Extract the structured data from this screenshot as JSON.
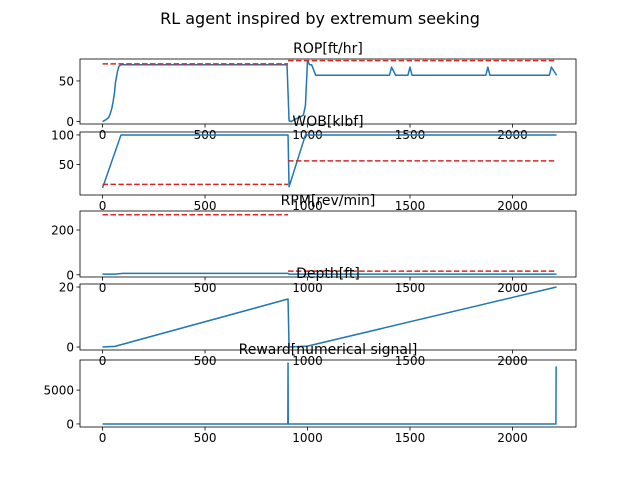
{
  "figure": {
    "suptitle": "RL agent inspired by extremum seeking"
  },
  "colors": {
    "series": "#1f77b4",
    "setpoint": "#d62728",
    "axis": "#000000",
    "background": "#ffffff"
  },
  "chart_data": [
    {
      "type": "line",
      "title": "ROP[ft/hr]",
      "xlim": [
        -110,
        2310
      ],
      "ylim": [
        -3,
        77
      ],
      "xticks": [
        0,
        500,
        1000,
        1500,
        2000
      ],
      "yticks": [
        0,
        50
      ],
      "series": [
        {
          "style": "solid",
          "color": "#1f77b4",
          "x": [
            0,
            15,
            30,
            38,
            45,
            52,
            58,
            63,
            68,
            73,
            80,
            90,
            100,
            900,
            910,
            920,
            940,
            960,
            980,
            990,
            1000,
            1010,
            1020,
            1040,
            1400,
            1410,
            1430,
            1490,
            1500,
            1510,
            1520,
            1870,
            1880,
            1890,
            1900,
            2180,
            2190,
            2215
          ],
          "y": [
            0,
            2,
            5,
            10,
            16,
            25,
            35,
            48,
            55,
            62,
            68,
            70,
            70,
            70,
            1,
            0,
            3,
            5,
            8,
            20,
            75,
            70,
            70,
            57,
            57,
            67,
            57,
            57,
            67,
            57,
            57,
            57,
            67,
            57,
            57,
            57,
            67,
            57
          ]
        },
        {
          "style": "dashed",
          "color": "#d62728",
          "segments": [
            {
              "x": [
                0,
                905
              ],
              "y": [
                71,
                71
              ]
            },
            {
              "x": [
                905,
                2215
              ],
              "y": [
                75,
                75
              ]
            }
          ]
        }
      ]
    },
    {
      "type": "line",
      "title": "WOB[klbf]",
      "xlim": [
        -110,
        2310
      ],
      "ylim": [
        -2,
        105
      ],
      "xticks": [
        0,
        500,
        1000,
        1500,
        2000
      ],
      "yticks": [
        50,
        100
      ],
      "series": [
        {
          "style": "solid",
          "color": "#1f77b4",
          "x": [
            0,
            90,
            905,
            910,
            990,
            2215
          ],
          "y": [
            10,
            100,
            100,
            12,
            100,
            100
          ]
        },
        {
          "style": "dashed",
          "color": "#d62728",
          "segments": [
            {
              "x": [
                0,
                905
              ],
              "y": [
                16,
                16
              ]
            },
            {
              "x": [
                905,
                2215
              ],
              "y": [
                56,
                56
              ]
            }
          ]
        }
      ]
    },
    {
      "type": "line",
      "title": "RPM[rev/min]",
      "xlim": [
        -110,
        2310
      ],
      "ylim": [
        -10,
        285
      ],
      "xticks": [
        0,
        500,
        1000,
        1500,
        2000
      ],
      "yticks": [
        0,
        200
      ],
      "series": [
        {
          "style": "solid",
          "color": "#1f77b4",
          "x": [
            0,
            60,
            100,
            905,
            910,
            2215
          ],
          "y": [
            3,
            3,
            6,
            6,
            3,
            3
          ]
        },
        {
          "style": "dashed",
          "color": "#d62728",
          "segments": [
            {
              "x": [
                0,
                905
              ],
              "y": [
                268,
                268
              ]
            },
            {
              "x": [
                905,
                2215
              ],
              "y": [
                16,
                16
              ]
            }
          ]
        }
      ]
    },
    {
      "type": "line",
      "title": "Depth[ft]",
      "xlim": [
        -110,
        2310
      ],
      "ylim": [
        -1,
        21
      ],
      "xticks": [
        0,
        500,
        1000,
        1500,
        2000
      ],
      "yticks": [
        0,
        20
      ],
      "series": [
        {
          "style": "solid",
          "color": "#1f77b4",
          "x": [
            0,
            60,
            905,
            910,
            1000,
            2215
          ],
          "y": [
            0,
            0.2,
            16,
            0,
            0.3,
            20
          ]
        }
      ]
    },
    {
      "type": "line",
      "title": "Reward[numerical signal]",
      "xlim": [
        -110,
        2310
      ],
      "ylim": [
        -450,
        9450
      ],
      "xticks": [
        0,
        500,
        1000,
        1500,
        2000
      ],
      "yticks": [
        0,
        5000
      ],
      "series": [
        {
          "style": "solid",
          "color": "#1f77b4",
          "x": [
            0,
            904,
            905,
            906,
            2212,
            2213
          ],
          "y": [
            0,
            0,
            9000,
            0,
            0,
            8500
          ]
        }
      ]
    }
  ]
}
